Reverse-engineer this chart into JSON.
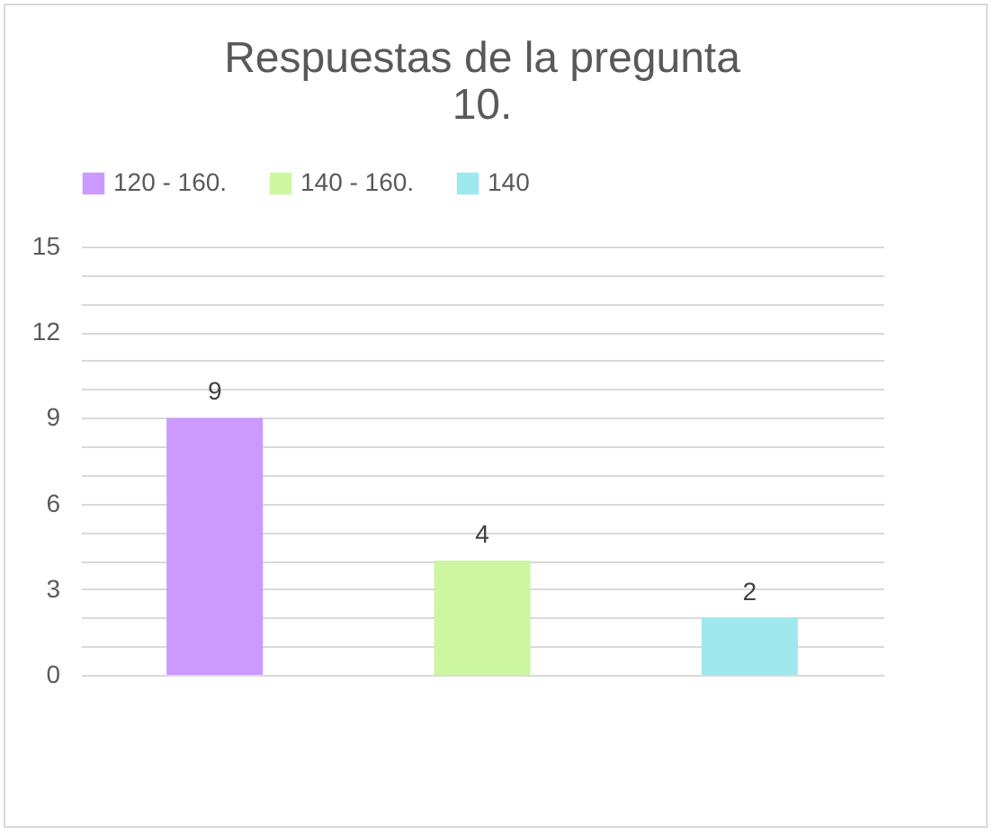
{
  "chart_data": {
    "type": "bar",
    "title": "Respuestas de la pregunta 10.",
    "categories": [
      null,
      null,
      null
    ],
    "series": [
      {
        "name": "120 - 160.",
        "color": "#cc99ff",
        "values": [
          9,
          null,
          null
        ]
      },
      {
        "name": "140 - 160.",
        "color": "#ccf7a0",
        "values": [
          null,
          4,
          null
        ]
      },
      {
        "name": "140",
        "color": "#9ee8ee",
        "values": [
          null,
          null,
          2
        ]
      }
    ],
    "ylim": [
      0,
      15
    ],
    "yticks": [
      0,
      {
        "value": 1,
        "label": null
      },
      {
        "value": 2,
        "label": null
      },
      3,
      {
        "value": 4,
        "label": null
      },
      {
        "value": 5,
        "label": null
      },
      6,
      {
        "value": 7,
        "label": null
      },
      {
        "value": 8,
        "label": null
      },
      9,
      {
        "value": 10,
        "label": null
      },
      {
        "value": 11,
        "label": null
      },
      12,
      {
        "value": 13,
        "label": null
      },
      {
        "value": 14,
        "label": null
      },
      15
    ],
    "grid": "y",
    "legend": "top",
    "data_labels": true
  }
}
